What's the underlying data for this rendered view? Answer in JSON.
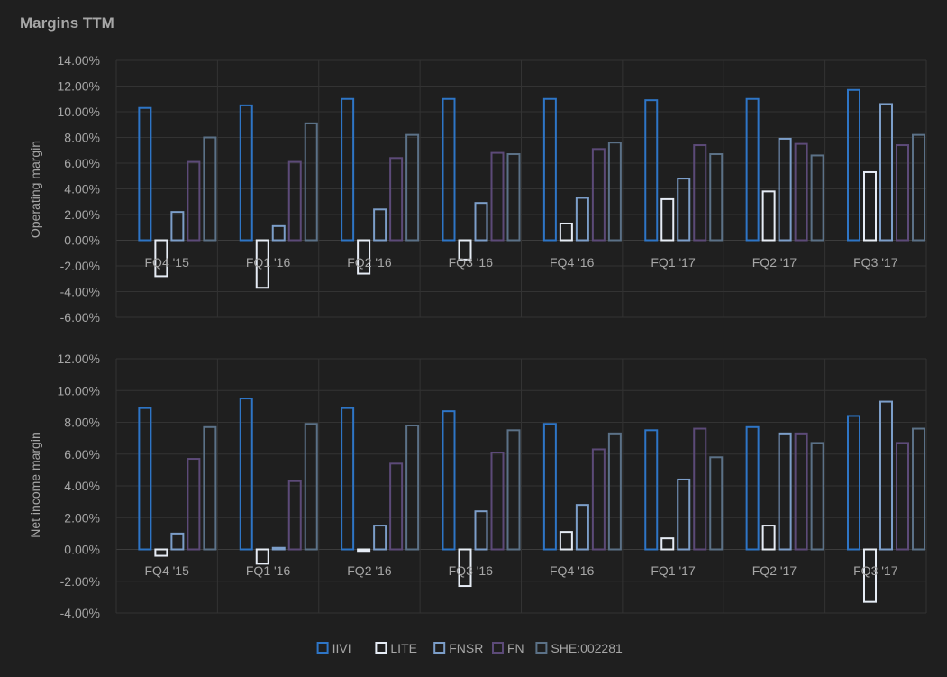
{
  "title": "Margins TTM",
  "colors": {
    "background": "#1f1f1f",
    "grid": "#333333",
    "axis_text": "#a6a6a6",
    "zero_line": "#3c3c3c"
  },
  "legend": {
    "placement": "bottom-center",
    "items": [
      {
        "name": "IIVI",
        "color": "#2e75c6"
      },
      {
        "name": "LITE",
        "color": "#e6ecf5"
      },
      {
        "name": "FNSR",
        "color": "#7c9ec9"
      },
      {
        "name": "FN",
        "color": "#5c4a78"
      },
      {
        "name": "SHE:002281",
        "color": "#5b7187"
      }
    ]
  },
  "chart_data": [
    {
      "type": "bar",
      "title": "",
      "ylabel": "Operating margin",
      "xlabel": "",
      "ylim": [
        -6,
        14
      ],
      "y_ticks": [
        "14.00%",
        "12.00%",
        "10.00%",
        "8.00%",
        "6.00%",
        "4.00%",
        "2.00%",
        "0.00%",
        "-2.00%",
        "-4.00%",
        "-6.00%"
      ],
      "grid": true,
      "categories": [
        "FQ4 '15",
        "FQ1 '16",
        "FQ2 '16",
        "FQ3 '16",
        "FQ4 '16",
        "FQ1 '17",
        "FQ2 '17",
        "FQ3 '17"
      ],
      "series": [
        {
          "name": "IIVI",
          "values": [
            10.3,
            10.5,
            11.0,
            11.0,
            11.0,
            10.9,
            11.0,
            11.7
          ]
        },
        {
          "name": "LITE",
          "values": [
            -2.8,
            -3.7,
            -2.6,
            -1.5,
            1.3,
            3.2,
            3.8,
            5.3
          ]
        },
        {
          "name": "FNSR",
          "values": [
            2.2,
            1.1,
            2.4,
            2.9,
            3.3,
            4.8,
            7.9,
            10.6
          ]
        },
        {
          "name": "FN",
          "values": [
            6.1,
            6.1,
            6.4,
            6.8,
            7.1,
            7.4,
            7.5,
            7.4
          ]
        },
        {
          "name": "SHE:002281",
          "values": [
            8.0,
            9.1,
            8.2,
            6.7,
            7.6,
            6.7,
            6.6,
            8.2
          ]
        }
      ]
    },
    {
      "type": "bar",
      "title": "",
      "ylabel": "Net income margin",
      "xlabel": "",
      "ylim": [
        -4,
        12
      ],
      "y_ticks": [
        "12.00%",
        "10.00%",
        "8.00%",
        "6.00%",
        "4.00%",
        "2.00%",
        "0.00%",
        "-2.00%",
        "-4.00%"
      ],
      "grid": true,
      "categories": [
        "FQ4 '15",
        "FQ1 '16",
        "FQ2 '16",
        "FQ3 '16",
        "FQ4 '16",
        "FQ1 '17",
        "FQ2 '17",
        "FQ3 '17"
      ],
      "series": [
        {
          "name": "IIVI",
          "values": [
            8.9,
            9.5,
            8.9,
            8.7,
            7.9,
            7.5,
            7.7,
            8.4
          ]
        },
        {
          "name": "LITE",
          "values": [
            -0.4,
            -0.9,
            -0.1,
            -2.3,
            1.1,
            0.7,
            1.5,
            -3.3
          ]
        },
        {
          "name": "FNSR",
          "values": [
            1.0,
            0.1,
            1.5,
            2.4,
            2.8,
            4.4,
            7.3,
            9.3
          ]
        },
        {
          "name": "FN",
          "values": [
            5.7,
            4.3,
            5.4,
            6.1,
            6.3,
            7.6,
            7.3,
            6.7
          ]
        },
        {
          "name": "SHE:002281",
          "values": [
            7.7,
            7.9,
            7.8,
            7.5,
            7.3,
            5.8,
            6.7,
            7.6
          ]
        }
      ]
    }
  ]
}
